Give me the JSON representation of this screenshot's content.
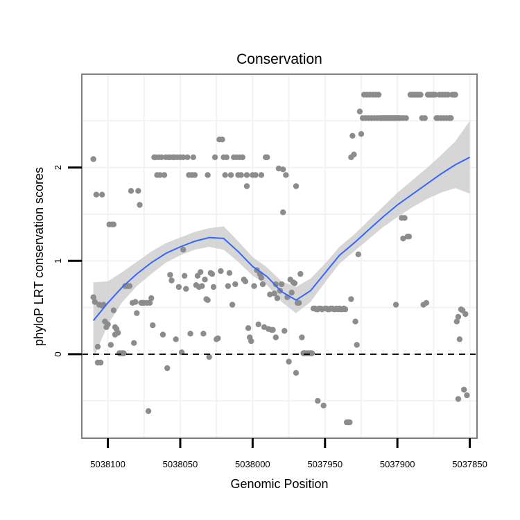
{
  "chart_data": {
    "type": "scatter",
    "title": "Conservation",
    "xlabel": "Genomic Position",
    "ylabel": "phyloP LRT conservation scores",
    "x_reversed": true,
    "xlim": [
      5038118,
      5037845
    ],
    "ylim": [
      -0.9,
      3.0
    ],
    "x_ticks": [
      5038100,
      5038050,
      5038000,
      5037950,
      5037900,
      5037850
    ],
    "x_tick_labels": [
      "5038100",
      "5038050",
      "5038000",
      "5037950",
      "5037900",
      "5037850"
    ],
    "y_ticks": [
      0,
      1,
      2
    ],
    "y_tick_labels": [
      "0",
      "1",
      "2"
    ],
    "grid": true,
    "reference_line": {
      "y": 0,
      "style": "dashed"
    },
    "colors": {
      "points": "#8c8c8c",
      "smooth": "#3366ff",
      "band": "#cfcfcf",
      "grid": "#f2f2f2",
      "border": "#7f7f7f"
    },
    "points": [
      [
        5038110,
        2.09
      ],
      [
        5038110,
        0.61
      ],
      [
        5038109,
        0.56
      ],
      [
        5038108,
        1.71
      ],
      [
        5038107,
        0.08
      ],
      [
        5038107,
        -0.09
      ],
      [
        5038106,
        0.53
      ],
      [
        5038105,
        -0.09
      ],
      [
        5038104,
        1.71
      ],
      [
        5038104,
        0.52
      ],
      [
        5038103,
        0.53
      ],
      [
        5038102,
        0.35
      ],
      [
        5038101,
        0.29
      ],
      [
        5038100,
        0.32
      ],
      [
        5038099,
        1.39
      ],
      [
        5038098,
        0.1
      ],
      [
        5038097,
        1.39
      ],
      [
        5038096,
        1.39
      ],
      [
        5038096,
        0.47
      ],
      [
        5038095,
        0.21
      ],
      [
        5038095,
        0.29
      ],
      [
        5038094,
        0.27
      ],
      [
        5038093,
        0.23
      ],
      [
        5038092,
        0.01
      ],
      [
        5038091,
        0.01
      ],
      [
        5038090,
        0.01
      ],
      [
        5038089,
        0.01
      ],
      [
        5038088,
        0.73
      ],
      [
        5038087,
        0.73
      ],
      [
        5038086,
        0.73
      ],
      [
        5038085,
        0.73
      ],
      [
        5038084,
        1.75
      ],
      [
        5038083,
        0.55
      ],
      [
        5038082,
        0.12
      ],
      [
        5038081,
        0.56
      ],
      [
        5038080,
        0.44
      ],
      [
        5038079,
        1.75
      ],
      [
        5038078,
        1.6
      ],
      [
        5038077,
        0.55
      ],
      [
        5038076,
        0.55
      ],
      [
        5038075,
        0.55
      ],
      [
        5038073,
        0.55
      ],
      [
        5038072,
        -0.61
      ],
      [
        5038071,
        0.55
      ],
      [
        5038070,
        0.6
      ],
      [
        5038069,
        0.31
      ],
      [
        5038068,
        2.11
      ],
      [
        5038067,
        2.11
      ],
      [
        5038066,
        1.92
      ],
      [
        5038065,
        2.11
      ],
      [
        5038064,
        1.92
      ],
      [
        5038063,
        2.11
      ],
      [
        5038062,
        0.21
      ],
      [
        5038061,
        1.92
      ],
      [
        5038060,
        2.11
      ],
      [
        5038059,
        -0.15
      ],
      [
        5038058,
        2.11
      ],
      [
        5038057,
        0.85
      ],
      [
        5038057,
        2.11
      ],
      [
        5038056,
        0.79
      ],
      [
        5038055,
        2.11
      ],
      [
        5038054,
        2.11
      ],
      [
        5038053,
        0.16
      ],
      [
        5038052,
        2.11
      ],
      [
        5038051,
        0.72
      ],
      [
        5038050,
        2.11
      ],
      [
        5038049,
        0.02
      ],
      [
        5038048,
        1.12
      ],
      [
        5038048,
        2.11
      ],
      [
        5038047,
        0.84
      ],
      [
        5038046,
        0.7
      ],
      [
        5038045,
        2.11
      ],
      [
        5038044,
        1.92
      ],
      [
        5038043,
        0.22
      ],
      [
        5038042,
        1.92
      ],
      [
        5038041,
        2.11
      ],
      [
        5038040,
        1.92
      ],
      [
        5038039,
        0.74
      ],
      [
        5038038,
        0.84
      ],
      [
        5038037,
        0.72
      ],
      [
        5038036,
        0.88
      ],
      [
        5038035,
        0.73
      ],
      [
        5038034,
        0.22
      ],
      [
        5038033,
        0.8
      ],
      [
        5038032,
        0.59
      ],
      [
        5038031,
        0.58
      ],
      [
        5038031,
        1.92
      ],
      [
        5038030,
        -0.03
      ],
      [
        5038029,
        0.87
      ],
      [
        5038028,
        0.86
      ],
      [
        5038027,
        0.72
      ],
      [
        5038026,
        2.11
      ],
      [
        5038025,
        0.16
      ],
      [
        5038024,
        0.17
      ],
      [
        5038023,
        2.3
      ],
      [
        5038022,
        0.89
      ],
      [
        5038021,
        2.3
      ],
      [
        5038020,
        2.11
      ],
      [
        5038019,
        1.92
      ],
      [
        5038018,
        2.11
      ],
      [
        5038017,
        0.73
      ],
      [
        5038016,
        0.87
      ],
      [
        5038015,
        1.92
      ],
      [
        5038014,
        0.53
      ],
      [
        5038013,
        2.11
      ],
      [
        5038012,
        0.75
      ],
      [
        5038011,
        2.11
      ],
      [
        5038010,
        1.92
      ],
      [
        5038009,
        2.11
      ],
      [
        5038008,
        1.92
      ],
      [
        5038007,
        2.11
      ],
      [
        5038006,
        0.8
      ],
      [
        5038005,
        0.78
      ],
      [
        5038004,
        1.92
      ],
      [
        5038004,
        1.8
      ],
      [
        5038003,
        0.28
      ],
      [
        5038002,
        0.18
      ],
      [
        5038001,
        0.14
      ],
      [
        5038000,
        1.92
      ],
      [
        5037999,
        0.73
      ],
      [
        5037998,
        1.92
      ],
      [
        5037997,
        0.9
      ],
      [
        5037996,
        0.32
      ],
      [
        5037995,
        0.86
      ],
      [
        5037994,
        1.92
      ],
      [
        5037994,
        0.82
      ],
      [
        5037993,
        0.75
      ],
      [
        5037992,
        0.29
      ],
      [
        5037991,
        2.11
      ],
      [
        5037990,
        2.11
      ],
      [
        5037989,
        0.27
      ],
      [
        5037988,
        0.64
      ],
      [
        5037987,
        0.26
      ],
      [
        5037986,
        0.26
      ],
      [
        5037985,
        0.65
      ],
      [
        5037984,
        0.75
      ],
      [
        5037984,
        0.18
      ],
      [
        5037983,
        0.6
      ],
      [
        5037982,
        1.99
      ],
      [
        5037981,
        0.68
      ],
      [
        5037980,
        0.75
      ],
      [
        5037979,
        1.52
      ],
      [
        5037979,
        1.98
      ],
      [
        5037978,
        0.25
      ],
      [
        5037977,
        1.92
      ],
      [
        5037976,
        0.61
      ],
      [
        5037975,
        -0.08
      ],
      [
        5037974,
        0.8
      ],
      [
        5037973,
        0.66
      ],
      [
        5037972,
        0.77
      ],
      [
        5037971,
        0.76
      ],
      [
        5037970,
        1.8
      ],
      [
        5037970,
        -0.2
      ],
      [
        5037969,
        0.55
      ],
      [
        5037968,
        0.55
      ],
      [
        5037967,
        0.86
      ],
      [
        5037966,
        0.18
      ],
      [
        5037965,
        0.01
      ],
      [
        5037964,
        0.01
      ],
      [
        5037963,
        0.01
      ],
      [
        5037962,
        0.01
      ],
      [
        5037961,
        0.01
      ],
      [
        5037960,
        0.01
      ],
      [
        5037959,
        0.01
      ],
      [
        5037958,
        0.49
      ],
      [
        5037957,
        0.49
      ],
      [
        5037956,
        0.48
      ],
      [
        5037955,
        0.48
      ],
      [
        5037955,
        -0.5
      ],
      [
        5037954,
        0.49
      ],
      [
        5037953,
        0.49
      ],
      [
        5037952,
        0.48
      ],
      [
        5037951,
        -0.55
      ],
      [
        5037950,
        0.49
      ],
      [
        5037949,
        0.49
      ],
      [
        5037948,
        0.48
      ],
      [
        5037947,
        0.48
      ],
      [
        5037946,
        0.49
      ],
      [
        5037945,
        0.49
      ],
      [
        5037944,
        0.48
      ],
      [
        5037943,
        0.48
      ],
      [
        5037942,
        0.49
      ],
      [
        5037941,
        0.48
      ],
      [
        5037940,
        0.49
      ],
      [
        5037939,
        0.48
      ],
      [
        5037938,
        0.48
      ],
      [
        5037937,
        0.49
      ],
      [
        5037936,
        0.48
      ],
      [
        5037935,
        -0.73
      ],
      [
        5037934,
        -0.73
      ],
      [
        5037933,
        -0.73
      ],
      [
        5037932,
        2.11
      ],
      [
        5037932,
        0.59
      ],
      [
        5037931,
        2.34
      ],
      [
        5037930,
        2.14
      ],
      [
        5037929,
        0.35
      ],
      [
        5037928,
        0.1
      ],
      [
        5037927,
        1.07
      ],
      [
        5037926,
        2.6
      ],
      [
        5037925,
        2.36
      ],
      [
        5037924,
        2.53
      ],
      [
        5037923,
        2.78
      ],
      [
        5037922,
        2.53
      ],
      [
        5037921,
        2.78
      ],
      [
        5037920,
        2.53
      ],
      [
        5037919,
        2.78
      ],
      [
        5037918,
        2.53
      ],
      [
        5037917,
        2.78
      ],
      [
        5037916,
        2.53
      ],
      [
        5037915,
        2.78
      ],
      [
        5037914,
        2.53
      ],
      [
        5037913,
        2.78
      ],
      [
        5037912,
        2.53
      ],
      [
        5037911,
        2.53
      ],
      [
        5037910,
        2.53
      ],
      [
        5037909,
        2.53
      ],
      [
        5037908,
        2.53
      ],
      [
        5037907,
        2.53
      ],
      [
        5037906,
        2.53
      ],
      [
        5037905,
        2.53
      ],
      [
        5037904,
        2.53
      ],
      [
        5037903,
        2.53
      ],
      [
        5037902,
        2.53
      ],
      [
        5037901,
        0.53
      ],
      [
        5037901,
        2.53
      ],
      [
        5037900,
        2.53
      ],
      [
        5037899,
        2.53
      ],
      [
        5037898,
        2.53
      ],
      [
        5037897,
        1.46
      ],
      [
        5037896,
        1.24
      ],
      [
        5037896,
        2.53
      ],
      [
        5037895,
        1.46
      ],
      [
        5037894,
        2.53
      ],
      [
        5037893,
        1.26
      ],
      [
        5037892,
        1.26
      ],
      [
        5037891,
        2.78
      ],
      [
        5037890,
        2.78
      ],
      [
        5037889,
        2.78
      ],
      [
        5037888,
        2.78
      ],
      [
        5037887,
        2.78
      ],
      [
        5037886,
        2.78
      ],
      [
        5037885,
        2.78
      ],
      [
        5037884,
        2.78
      ],
      [
        5037883,
        2.53
      ],
      [
        5037882,
        0.53
      ],
      [
        5037881,
        2.53
      ],
      [
        5037880,
        0.55
      ],
      [
        5037879,
        2.78
      ],
      [
        5037878,
        2.78
      ],
      [
        5037877,
        2.78
      ],
      [
        5037876,
        2.78
      ],
      [
        5037875,
        2.78
      ],
      [
        5037874,
        2.78
      ],
      [
        5037873,
        2.53
      ],
      [
        5037872,
        2.53
      ],
      [
        5037871,
        2.78
      ],
      [
        5037870,
        2.53
      ],
      [
        5037869,
        2.78
      ],
      [
        5037868,
        2.53
      ],
      [
        5037867,
        2.78
      ],
      [
        5037866,
        2.53
      ],
      [
        5037865,
        2.78
      ],
      [
        5037864,
        2.53
      ],
      [
        5037863,
        2.53
      ],
      [
        5037862,
        2.78
      ],
      [
        5037861,
        2.78
      ],
      [
        5037860,
        2.78
      ],
      [
        5037859,
        0.35
      ],
      [
        5037858,
        -0.48
      ],
      [
        5037858,
        0.4
      ],
      [
        5037857,
        0.16
      ],
      [
        5037856,
        0.48
      ],
      [
        5037855,
        0.47
      ],
      [
        5037854,
        -0.38
      ],
      [
        5037853,
        0.43
      ],
      [
        5037852,
        -0.44
      ]
    ],
    "smooth": {
      "x": [
        5038110,
        5038100,
        5038090,
        5038080,
        5038070,
        5038060,
        5038050,
        5038040,
        5038030,
        5038020,
        5038010,
        5038000,
        5037990,
        5037980,
        5037970,
        5037960,
        5037950,
        5037940,
        5037930,
        5037920,
        5037910,
        5037900,
        5037890,
        5037880,
        5037870,
        5037860,
        5037850
      ],
      "y": [
        0.36,
        0.55,
        0.72,
        0.86,
        0.98,
        1.08,
        1.15,
        1.21,
        1.25,
        1.24,
        1.1,
        0.94,
        0.83,
        0.67,
        0.58,
        0.68,
        0.87,
        1.06,
        1.19,
        1.33,
        1.47,
        1.6,
        1.71,
        1.82,
        1.93,
        2.03,
        2.11
      ],
      "lower": [
        -0.05,
        0.32,
        0.56,
        0.73,
        0.86,
        0.98,
        1.06,
        1.12,
        1.15,
        1.12,
        0.99,
        0.84,
        0.74,
        0.56,
        0.44,
        0.56,
        0.77,
        0.97,
        1.1,
        1.23,
        1.36,
        1.47,
        1.57,
        1.66,
        1.73,
        1.78,
        1.72
      ],
      "upper": [
        0.77,
        0.78,
        0.88,
        0.99,
        1.1,
        1.19,
        1.25,
        1.31,
        1.35,
        1.37,
        1.21,
        1.04,
        0.93,
        0.78,
        0.72,
        0.81,
        0.97,
        1.15,
        1.28,
        1.43,
        1.58,
        1.73,
        1.86,
        1.99,
        2.13,
        2.28,
        2.5
      ]
    }
  }
}
